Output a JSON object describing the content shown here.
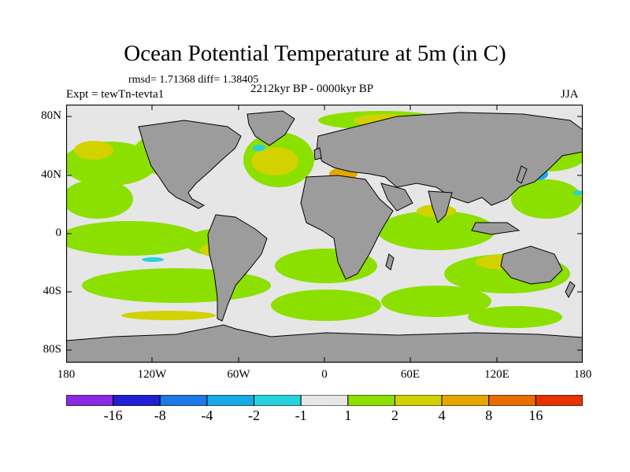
{
  "title": "Ocean Potential Temperature at 5m (in C)",
  "stats": "rmsd= 1.71368 diff= 1.38405",
  "experiment": "Expt = tewTn-tevta1",
  "period": "2212kyr BP - 0000kyr BP",
  "season": "JJA",
  "lat_labels": [
    "80N",
    "40N",
    "0",
    "40S",
    "80S"
  ],
  "lon_labels": [
    "180",
    "120W",
    "60W",
    "0",
    "60E",
    "120E",
    "180"
  ],
  "colorbar": {
    "labels": [
      "-16",
      "-8",
      "-4",
      "-2",
      "-1",
      "1",
      "2",
      "4",
      "8",
      "16"
    ],
    "colors": [
      "#8a2be2",
      "#2020d0",
      "#1e78e6",
      "#19aae6",
      "#28d2dc",
      "#e6e6e6",
      "#8ce000",
      "#d2d200",
      "#e6a600",
      "#e66e00",
      "#e63200"
    ]
  },
  "colors": {
    "land": "#9c9c9c",
    "neutral": "#e6e6e6",
    "warm_small": "#8ce000",
    "warm_mid": "#d2d200",
    "warm_high": "#e6a600",
    "warm_higher": "#e66e00",
    "cool_small": "#28d2dc",
    "cool_mid": "#19aae6"
  }
}
